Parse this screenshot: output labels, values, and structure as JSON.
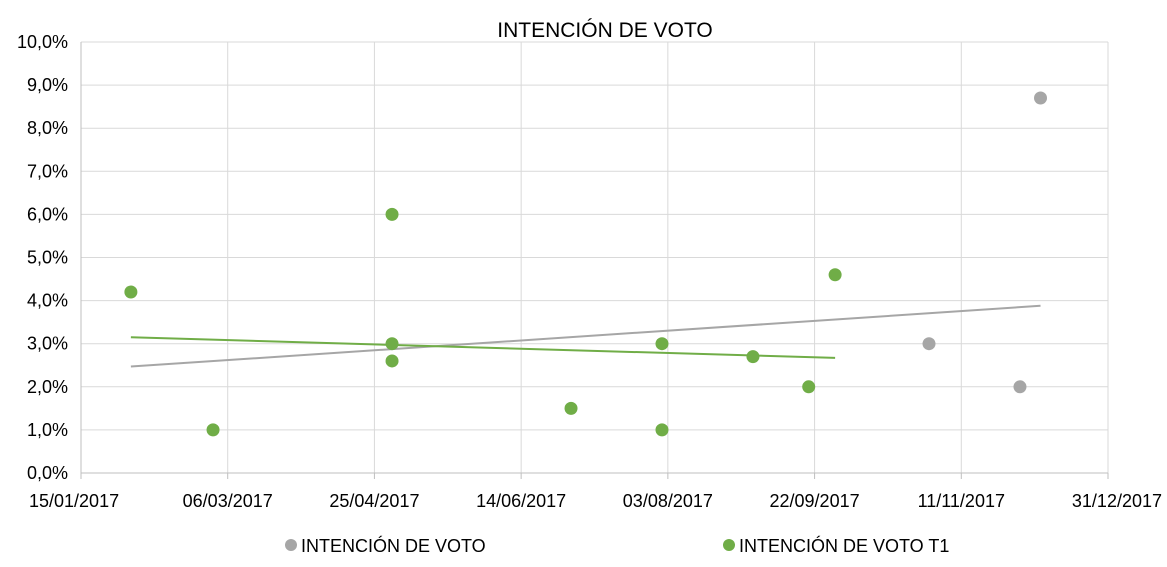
{
  "chart_data": {
    "type": "scatter",
    "title": "INTENCIÓN DE VOTO",
    "xlabel": "",
    "ylabel": "",
    "x_ticks": [
      "15/01/2017",
      "06/03/2017",
      "25/04/2017",
      "14/06/2017",
      "03/08/2017",
      "22/09/2017",
      "11/11/2017",
      "31/12/2017"
    ],
    "x_tick_days": [
      0,
      50,
      100,
      150,
      200,
      250,
      300,
      350
    ],
    "xlim_days": [
      0,
      350
    ],
    "x_origin": "15/01/2017",
    "y_ticks": [
      "0,0%",
      "1,0%",
      "2,0%",
      "3,0%",
      "4,0%",
      "5,0%",
      "6,0%",
      "7,0%",
      "8,0%",
      "9,0%",
      "10,0%"
    ],
    "ylim": [
      0,
      10
    ],
    "grid": true,
    "legend_position": "bottom",
    "series": [
      {
        "name": "INTENCIÓN DE VOTO",
        "color": "#a6a6a6",
        "x_days": [
          289,
          320,
          327
        ],
        "y": [
          3.0,
          2.0,
          8.7
        ],
        "trendline": {
          "x_days": [
            17,
            327
          ],
          "y": [
            2.47,
            3.88
          ]
        }
      },
      {
        "name": "INTENCIÓN DE VOTO T1",
        "color": "#70ad47",
        "x_days": [
          17,
          45,
          106,
          106,
          106,
          167,
          198,
          198,
          229,
          248,
          257
        ],
        "y": [
          4.2,
          1.0,
          6.0,
          3.0,
          2.6,
          1.5,
          3.0,
          1.0,
          2.7,
          2.0,
          4.6
        ],
        "trendline": {
          "x_days": [
            17,
            257
          ],
          "y": [
            3.15,
            2.67
          ]
        }
      }
    ]
  }
}
